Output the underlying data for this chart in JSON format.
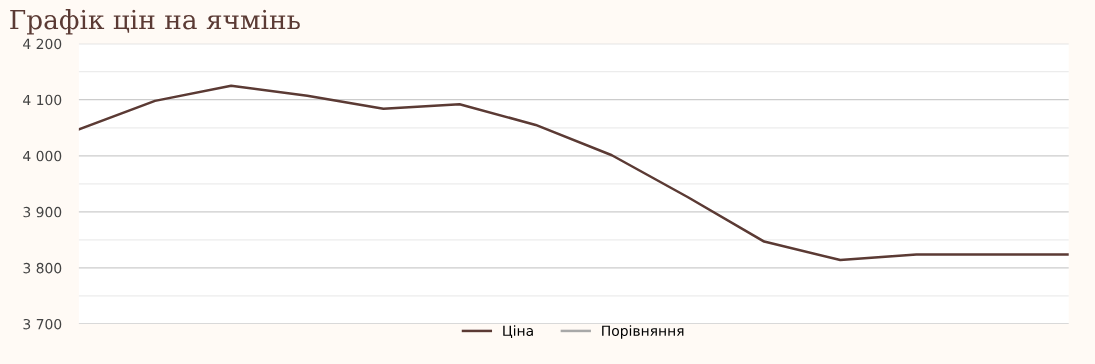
{
  "chart_data": {
    "type": "line",
    "title": "Графік цін на ячмінь",
    "categories": [
      null,
      null,
      null,
      null,
      null,
      null,
      null,
      null,
      null,
      null,
      null,
      null,
      null,
      null
    ],
    "series": [
      {
        "name": "Ціна",
        "color": "#5b3a34",
        "values": [
          4047,
          4098,
          4125,
          4107,
          4084,
          4092,
          4055,
          4001,
          3926,
          3847,
          3814,
          3824,
          3824,
          3824
        ]
      },
      {
        "name": "Порівняння",
        "color": "#a8a8a8",
        "values": [
          null,
          null,
          null,
          null,
          null,
          null,
          null,
          null,
          null,
          null,
          null,
          null,
          null,
          null
        ]
      }
    ],
    "ylim": [
      3700,
      4200
    ],
    "yticks": [
      {
        "value": 3700,
        "label": "3 700"
      },
      {
        "value": 3750,
        "label": null
      },
      {
        "value": 3800,
        "label": "3 800"
      },
      {
        "value": 3850,
        "label": null
      },
      {
        "value": 3900,
        "label": "3 900"
      },
      {
        "value": 3950,
        "label": null
      },
      {
        "value": 4000,
        "label": "4 000"
      },
      {
        "value": 4050,
        "label": null
      },
      {
        "value": 4100,
        "label": "4 100"
      },
      {
        "value": 4150,
        "label": null
      },
      {
        "value": 4200,
        "label": "4 200"
      }
    ],
    "grid": "y",
    "legend": "bottom",
    "marker": "none",
    "line_style": "solid"
  }
}
